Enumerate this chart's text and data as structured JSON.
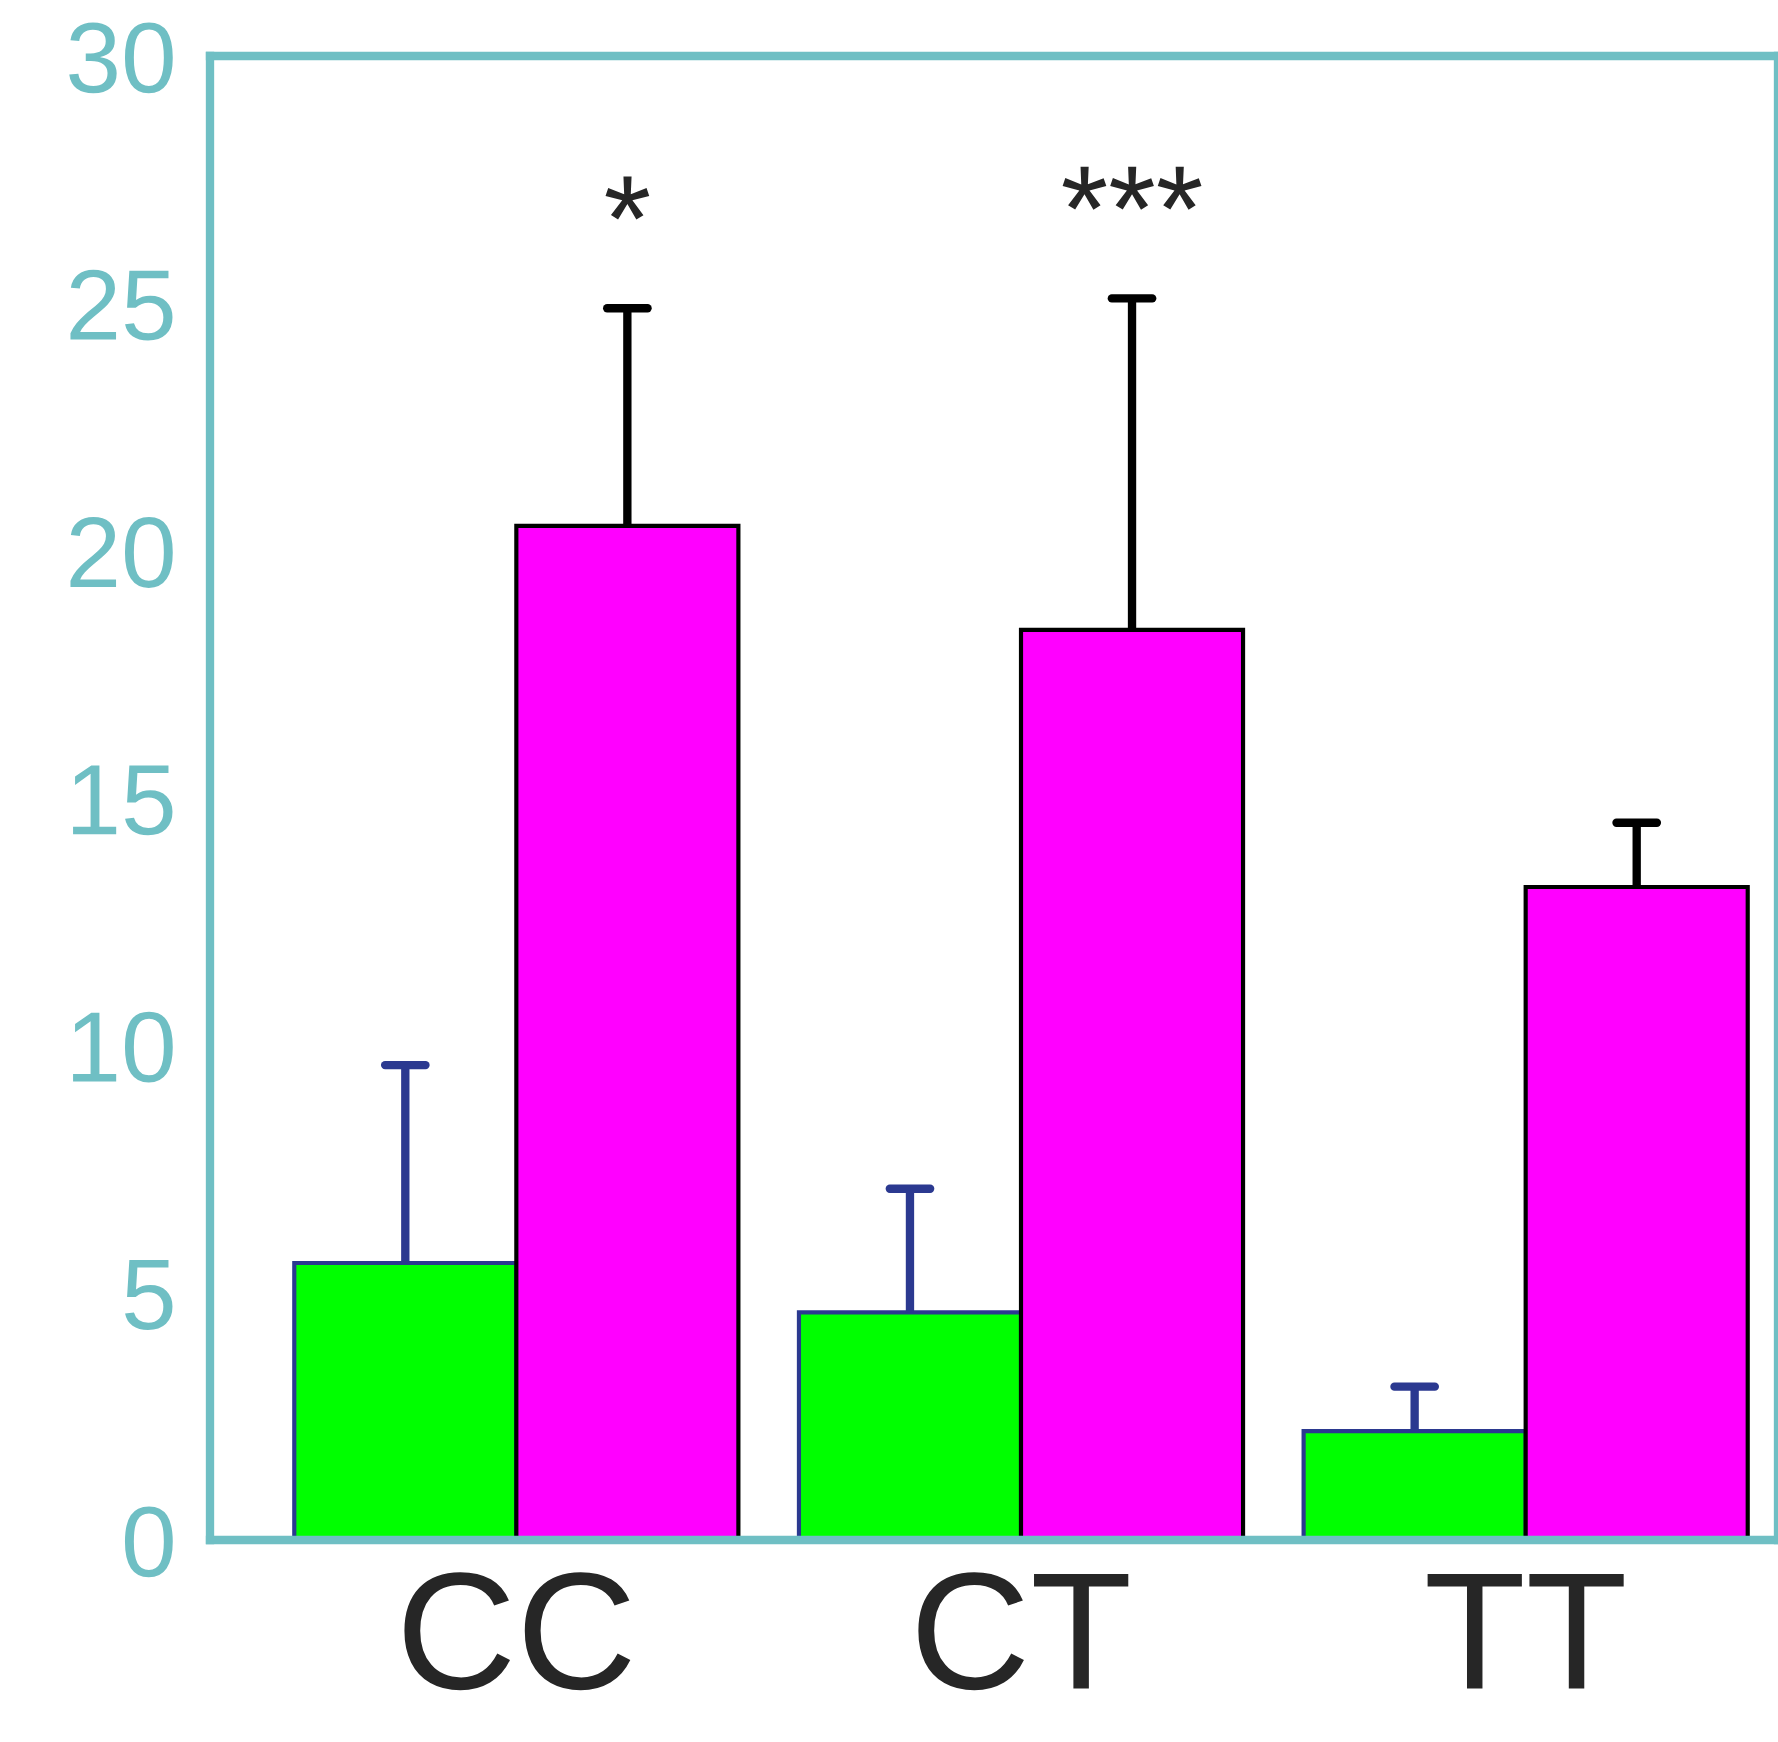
{
  "chart_data": {
    "type": "bar",
    "categories": [
      "CC",
      "CT",
      "TT"
    ],
    "series": [
      {
        "color": "#00ff00",
        "values": [
          5.6,
          4.6,
          2.2
        ],
        "errors": [
          [
            5.6,
            9.6
          ],
          [
            4.6,
            7.1
          ],
          [
            2.2,
            3.1
          ]
        ]
      },
      {
        "color": "#ff00ff",
        "values": [
          20.5,
          18.4,
          13.2
        ],
        "errors": [
          [
            20.5,
            24.9
          ],
          [
            18.4,
            25.1
          ],
          [
            13.2,
            14.5
          ]
        ]
      }
    ],
    "ylim": [
      0,
      30
    ],
    "yticks": [
      0,
      5,
      10,
      15,
      20,
      25,
      30
    ],
    "grid": false,
    "annotations": [
      "*",
      "***"
    ]
  }
}
